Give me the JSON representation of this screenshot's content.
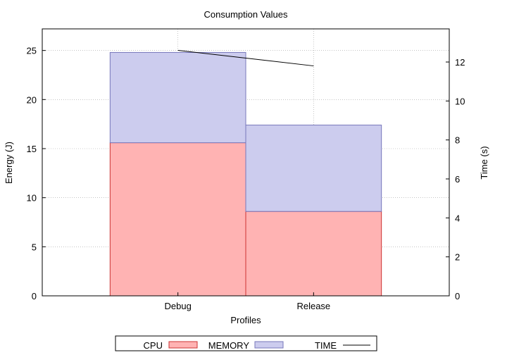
{
  "chart_data": {
    "type": "bar",
    "stacked": true,
    "title": "Consumption Values",
    "xlabel": "Profiles",
    "ylabel": "Energy (J)",
    "y2label": "Time (s)",
    "categories": [
      "Debug",
      "Release"
    ],
    "series": [
      {
        "name": "CPU",
        "type": "bar",
        "axis": "left",
        "color": "#ffb3b3",
        "stroke": "#cc3333",
        "values": [
          15.6,
          8.6
        ]
      },
      {
        "name": "MEMORY",
        "type": "bar",
        "axis": "left",
        "color": "#ccccee",
        "stroke": "#7777bb",
        "values": [
          9.2,
          8.8
        ]
      },
      {
        "name": "TIME",
        "type": "line",
        "axis": "right",
        "color": "#000000",
        "values": [
          12.6,
          11.8
        ]
      }
    ],
    "ylim": [
      0,
      27.2
    ],
    "y2lim": [
      0,
      13.7
    ],
    "yticks": [
      "0",
      "5",
      "10",
      "15",
      "20",
      "25"
    ],
    "y2ticks": [
      "0",
      "2",
      "4",
      "6",
      "8",
      "10",
      "12"
    ],
    "grid": true,
    "legend": "bottom"
  }
}
